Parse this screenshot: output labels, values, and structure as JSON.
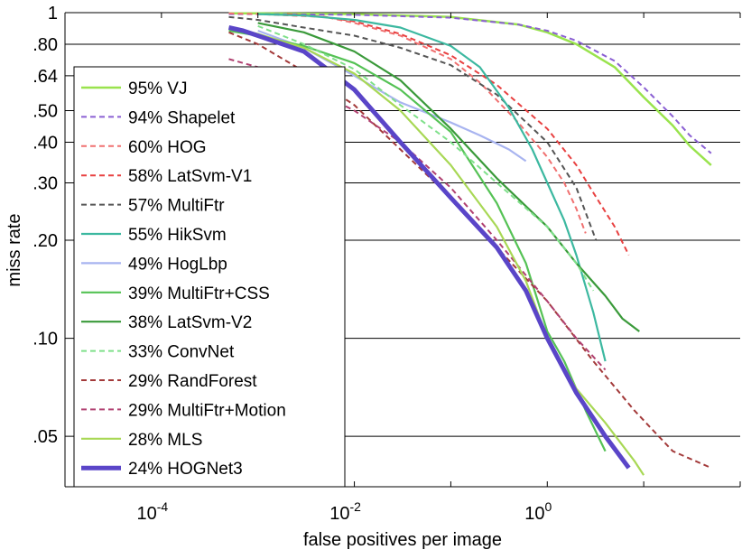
{
  "chart_data": {
    "type": "line",
    "title": "",
    "xlabel": "false positives per image",
    "ylabel": "miss rate",
    "xscale": "log",
    "yscale": "log",
    "xlim": [
      1e-05,
      100
    ],
    "ylim": [
      0.035,
      1
    ],
    "grid": "horizontal",
    "legend_position": "top-left",
    "yticks": [
      {
        "value": 1,
        "label": "1"
      },
      {
        "value": 0.8,
        "label": ".80"
      },
      {
        "value": 0.64,
        "label": ".64"
      },
      {
        "value": 0.5,
        "label": ".50"
      },
      {
        "value": 0.4,
        "label": ".40"
      },
      {
        "value": 0.3,
        "label": ".30"
      },
      {
        "value": 0.2,
        "label": ".20"
      },
      {
        "value": 0.1,
        "label": ".10"
      },
      {
        "value": 0.05,
        "label": ".05"
      }
    ],
    "xticks": [
      {
        "value": 0.0001,
        "base": "10",
        "exp": "-4"
      },
      {
        "value": 0.01,
        "base": "10",
        "exp": "-2"
      },
      {
        "value": 1,
        "base": "10",
        "exp": "0"
      }
    ],
    "series": [
      {
        "name": "95% VJ",
        "color": "#99e34d",
        "dash": "solid",
        "width": 2.5,
        "x": [
          0.0005,
          0.001,
          0.01,
          0.1,
          0.5,
          1,
          2,
          5,
          10,
          20,
          30,
          50
        ],
        "y": [
          0.995,
          0.995,
          0.99,
          0.97,
          0.92,
          0.87,
          0.8,
          0.68,
          0.55,
          0.45,
          0.39,
          0.34
        ]
      },
      {
        "name": "94% Shapelet",
        "color": "#8a5fd3",
        "dash": "dashed",
        "width": 2,
        "x": [
          0.0005,
          0.001,
          0.01,
          0.1,
          0.5,
          1,
          2,
          5,
          10,
          20,
          30,
          50
        ],
        "y": [
          0.99,
          0.99,
          0.985,
          0.965,
          0.92,
          0.88,
          0.82,
          0.71,
          0.59,
          0.48,
          0.42,
          0.37
        ]
      },
      {
        "name": "60% HOG",
        "color": "#f07070",
        "dash": "dashed",
        "width": 2,
        "x": [
          0.0005,
          0.001,
          0.005,
          0.01,
          0.03,
          0.1,
          0.2,
          0.5,
          1,
          1.5,
          2,
          2.5
        ],
        "y": [
          0.995,
          0.99,
          0.97,
          0.93,
          0.85,
          0.72,
          0.61,
          0.46,
          0.36,
          0.3,
          0.25,
          0.21
        ]
      },
      {
        "name": "58% LatSvm-V1",
        "color": "#e84040",
        "dash": "dashed",
        "width": 2,
        "x": [
          0.002,
          0.005,
          0.01,
          0.03,
          0.1,
          0.3,
          1,
          2,
          3,
          5,
          7
        ],
        "y": [
          0.99,
          0.97,
          0.94,
          0.86,
          0.74,
          0.6,
          0.44,
          0.34,
          0.28,
          0.22,
          0.18
        ]
      },
      {
        "name": "57% MultiFtr",
        "color": "#555555",
        "dash": "dashed",
        "width": 2,
        "x": [
          0.0005,
          0.001,
          0.003,
          0.01,
          0.03,
          0.1,
          0.3,
          1,
          2,
          3.2
        ],
        "y": [
          0.97,
          0.95,
          0.9,
          0.85,
          0.78,
          0.69,
          0.56,
          0.4,
          0.29,
          0.2
        ]
      },
      {
        "name": "55% HikSvm",
        "color": "#3cb8a0",
        "dash": "solid",
        "width": 2.2,
        "x": [
          0.001,
          0.003,
          0.01,
          0.03,
          0.1,
          0.2,
          0.4,
          0.7,
          1,
          1.5,
          2,
          3,
          4
        ],
        "y": [
          0.99,
          0.98,
          0.95,
          0.9,
          0.79,
          0.68,
          0.51,
          0.38,
          0.3,
          0.23,
          0.18,
          0.12,
          0.085
        ]
      },
      {
        "name": "49% HogLbp",
        "color": "#a8b4f0",
        "dash": "solid",
        "width": 2.2,
        "x": [
          0.001,
          0.003,
          0.01,
          0.03,
          0.1,
          0.2,
          0.4,
          0.6
        ],
        "y": [
          0.88,
          0.78,
          0.64,
          0.53,
          0.46,
          0.42,
          0.38,
          0.35
        ]
      },
      {
        "name": "39% MultiFtr+CSS",
        "color": "#55c255",
        "dash": "solid",
        "width": 2.2,
        "x": [
          0.0005,
          0.001,
          0.003,
          0.01,
          0.03,
          0.1,
          0.3,
          0.6,
          0.8,
          1,
          1.5,
          2.5,
          4
        ],
        "y": [
          0.88,
          0.85,
          0.79,
          0.7,
          0.58,
          0.43,
          0.26,
          0.17,
          0.13,
          0.105,
          0.085,
          0.06,
          0.045
        ]
      },
      {
        "name": "38% LatSvm-V2",
        "color": "#3a9a3a",
        "dash": "solid",
        "width": 2.2,
        "x": [
          0.001,
          0.003,
          0.01,
          0.03,
          0.1,
          0.3,
          1,
          2,
          4,
          6,
          9
        ],
        "y": [
          0.93,
          0.87,
          0.76,
          0.62,
          0.44,
          0.31,
          0.22,
          0.17,
          0.135,
          0.115,
          0.105
        ]
      },
      {
        "name": "33% ConvNet",
        "color": "#7fe08a",
        "dash": "dashed",
        "width": 2,
        "x": [
          0.001,
          0.003,
          0.01,
          0.03,
          0.1,
          0.3,
          1,
          2,
          3
        ],
        "y": [
          0.91,
          0.8,
          0.67,
          0.52,
          0.4,
          0.3,
          0.22,
          0.17,
          0.14
        ]
      },
      {
        "name": "29% RandForest",
        "color": "#a33a3a",
        "dash": "dashed",
        "width": 2,
        "x": [
          0.0005,
          0.001,
          0.003,
          0.01,
          0.03,
          0.1,
          0.3,
          1,
          3,
          8,
          20,
          50
        ],
        "y": [
          0.87,
          0.8,
          0.66,
          0.52,
          0.38,
          0.27,
          0.19,
          0.13,
          0.085,
          0.06,
          0.045,
          0.04
        ]
      },
      {
        "name": "29% MultiFtr+Motion",
        "color": "#b04070",
        "dash": "dashed",
        "width": 2,
        "x": [
          0.0005,
          0.001,
          0.003,
          0.01,
          0.03,
          0.1,
          0.3,
          1,
          2,
          4
        ],
        "y": [
          0.72,
          0.68,
          0.6,
          0.5,
          0.4,
          0.29,
          0.2,
          0.13,
          0.1,
          0.08
        ]
      },
      {
        "name": "28% MLS",
        "color": "#a8d855",
        "dash": "solid",
        "width": 2.2,
        "x": [
          0.0005,
          0.001,
          0.003,
          0.01,
          0.03,
          0.1,
          0.3,
          0.6,
          1,
          2,
          4,
          8,
          10
        ],
        "y": [
          0.9,
          0.86,
          0.78,
          0.65,
          0.5,
          0.34,
          0.22,
          0.15,
          0.1,
          0.07,
          0.055,
          0.042,
          0.038
        ]
      },
      {
        "name": "24% HOGNet3",
        "color": "#5a45c8",
        "dash": "solid",
        "width": 5,
        "x": [
          0.0005,
          0.0007,
          0.001,
          0.003,
          0.01,
          0.03,
          0.1,
          0.3,
          0.6,
          1,
          2,
          4,
          7
        ],
        "y": [
          0.9,
          0.88,
          0.85,
          0.76,
          0.58,
          0.4,
          0.27,
          0.19,
          0.14,
          0.1,
          0.068,
          0.05,
          0.04
        ]
      }
    ]
  }
}
